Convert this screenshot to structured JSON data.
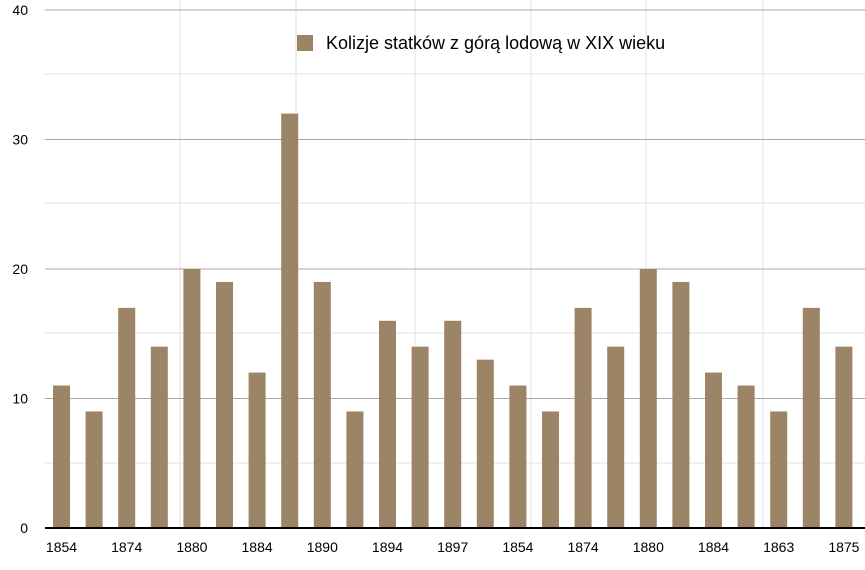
{
  "chart_data": {
    "type": "bar",
    "title": "",
    "xlabel": "",
    "ylabel": "",
    "ylim": [
      0,
      40
    ],
    "yticks": [
      0,
      10,
      20,
      30,
      40
    ],
    "grid": true,
    "legend_position": "top-center",
    "series": [
      {
        "name": "Kolizje statków z górą lodową w XIX wieku",
        "color": "#9c8466",
        "values": [
          11,
          9,
          17,
          14,
          20,
          19,
          12,
          32,
          19,
          9,
          16,
          14,
          16,
          13,
          11,
          9,
          17,
          14,
          20,
          19,
          12,
          11,
          9,
          17,
          14
        ]
      }
    ],
    "categories": [
      "1854",
      "",
      "1874",
      "",
      "1880",
      "",
      "1884",
      "",
      "1890",
      "",
      "1894",
      "",
      "1897",
      "",
      "1854",
      "",
      "1874",
      "",
      "1880",
      "",
      "1884",
      "",
      "1863",
      "",
      "1875"
    ]
  },
  "colors": {
    "bar": "#9c8466",
    "gridline": "#a8a8a8",
    "light_grid": "#e2e2e2",
    "axis": "#000000",
    "text": "#000000"
  }
}
